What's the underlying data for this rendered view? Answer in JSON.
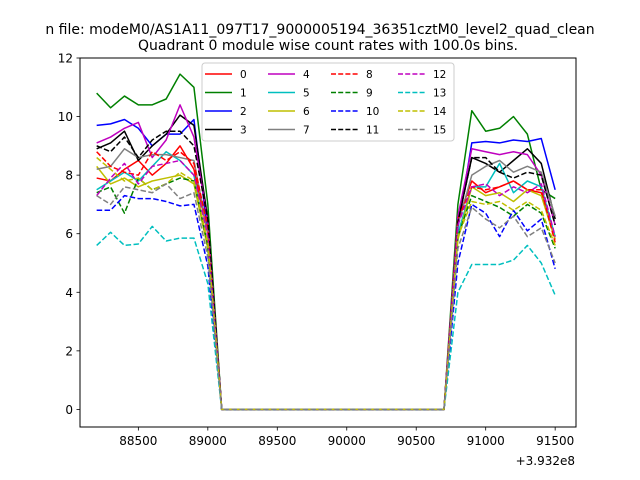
{
  "figure": {
    "suptitle": "n file: modeM0/AS1A11_097T17_9000005194_36351cztM0_level2_quad_clean",
    "offset_label": "+3.932e8"
  },
  "chart_data": {
    "type": "line",
    "title": "Quadrant 0 module wise count rates with 100.0s bins.",
    "xlabel": "",
    "ylabel": "",
    "xlim": [
      88080,
      91650
    ],
    "ylim": [
      -0.6,
      12.0
    ],
    "x_ticks": [
      88500,
      89000,
      89500,
      90000,
      90500,
      91000,
      91500
    ],
    "y_ticks": [
      0,
      2,
      4,
      6,
      8,
      10,
      12
    ],
    "x_tick_labels": [
      "88500",
      "89000",
      "89500",
      "90000",
      "90500",
      "91000",
      "91500"
    ],
    "y_tick_labels": [
      "0",
      "2",
      "4",
      "6",
      "8",
      "10",
      "12"
    ],
    "grid": false,
    "legend_position": "top-center",
    "legend_columns": 4,
    "x": [
      88200,
      88300,
      88400,
      88500,
      88600,
      88700,
      88800,
      88900,
      89000,
      89100,
      89200,
      89300,
      89400,
      89500,
      89600,
      89700,
      89800,
      89900,
      90000,
      90100,
      90200,
      90300,
      90400,
      90500,
      90600,
      90700,
      90800,
      90900,
      91000,
      91100,
      91200,
      91300,
      91400,
      91500
    ],
    "series": [
      {
        "name": "0",
        "color": "#ff0000",
        "dash": "solid",
        "values": [
          7.9,
          7.8,
          8.2,
          8.5,
          8.0,
          8.4,
          9.0,
          8.2,
          6.0,
          0,
          0,
          0,
          0,
          0,
          0,
          0,
          0,
          0,
          0,
          0,
          0,
          0,
          0,
          0,
          0,
          0,
          6.5,
          7.8,
          7.4,
          7.6,
          7.8,
          7.5,
          7.4,
          5.8
        ]
      },
      {
        "name": "1",
        "color": "#008000",
        "dash": "solid",
        "values": [
          10.8,
          10.3,
          10.7,
          10.4,
          10.4,
          10.6,
          11.45,
          11.0,
          7.0,
          0,
          0,
          0,
          0,
          0,
          0,
          0,
          0,
          0,
          0,
          0,
          0,
          0,
          0,
          0,
          0,
          0,
          7.0,
          10.2,
          9.5,
          9.6,
          10.0,
          9.4,
          7.5,
          7.2
        ]
      },
      {
        "name": "2",
        "color": "#0000ff",
        "dash": "solid",
        "values": [
          9.7,
          9.75,
          9.9,
          9.6,
          9.0,
          9.4,
          9.4,
          9.9,
          6.0,
          0,
          0,
          0,
          0,
          0,
          0,
          0,
          0,
          0,
          0,
          0,
          0,
          0,
          0,
          0,
          0,
          0,
          6.2,
          9.1,
          9.15,
          9.1,
          9.2,
          9.15,
          9.25,
          7.5
        ]
      },
      {
        "name": "3",
        "color": "#000000",
        "dash": "solid",
        "values": [
          8.9,
          9.1,
          9.5,
          8.5,
          9.0,
          9.4,
          10.05,
          9.7,
          6.5,
          0,
          0,
          0,
          0,
          0,
          0,
          0,
          0,
          0,
          0,
          0,
          0,
          0,
          0,
          0,
          0,
          0,
          6.4,
          8.6,
          8.4,
          8.1,
          8.5,
          8.9,
          8.4,
          6.5
        ]
      },
      {
        "name": "4",
        "color": "#bf00bf",
        "dash": "solid",
        "values": [
          9.1,
          9.3,
          9.6,
          9.8,
          8.6,
          9.2,
          10.4,
          9.3,
          6.4,
          0,
          0,
          0,
          0,
          0,
          0,
          0,
          0,
          0,
          0,
          0,
          0,
          0,
          0,
          0,
          0,
          0,
          6.6,
          8.9,
          8.8,
          8.7,
          8.8,
          8.7,
          8.0,
          6.3
        ]
      },
      {
        "name": "5",
        "color": "#00bfbf",
        "dash": "solid",
        "values": [
          7.5,
          7.8,
          8.1,
          7.8,
          8.3,
          8.8,
          8.5,
          8.0,
          5.5,
          0,
          0,
          0,
          0,
          0,
          0,
          0,
          0,
          0,
          0,
          0,
          0,
          0,
          0,
          0,
          0,
          0,
          6.0,
          7.6,
          7.6,
          8.4,
          7.4,
          7.8,
          7.6,
          5.9
        ]
      },
      {
        "name": "6",
        "color": "#bfbf00",
        "dash": "solid",
        "values": [
          8.3,
          7.7,
          7.9,
          7.6,
          7.8,
          7.9,
          8.0,
          7.7,
          5.5,
          0,
          0,
          0,
          0,
          0,
          0,
          0,
          0,
          0,
          0,
          0,
          0,
          0,
          0,
          0,
          0,
          0,
          5.8,
          7.6,
          7.3,
          7.4,
          7.1,
          7.5,
          7.3,
          5.8
        ]
      },
      {
        "name": "7",
        "color": "#808080",
        "dash": "solid",
        "values": [
          8.2,
          8.3,
          8.9,
          8.6,
          8.7,
          8.7,
          8.6,
          8.5,
          6.0,
          0,
          0,
          0,
          0,
          0,
          0,
          0,
          0,
          0,
          0,
          0,
          0,
          0,
          0,
          0,
          0,
          0,
          6.3,
          8.0,
          8.3,
          8.5,
          8.1,
          8.3,
          8.1,
          6.6
        ]
      },
      {
        "name": "8",
        "color": "#ff0000",
        "dash": "dashed",
        "values": [
          8.8,
          8.3,
          8.1,
          8.0,
          8.8,
          8.5,
          8.8,
          8.4,
          6.2,
          0,
          0,
          0,
          0,
          0,
          0,
          0,
          0,
          0,
          0,
          0,
          0,
          0,
          0,
          0,
          0,
          0,
          6.5,
          7.6,
          7.5,
          7.6,
          7.8,
          7.5,
          7.5,
          5.7
        ]
      },
      {
        "name": "9",
        "color": "#008000",
        "dash": "dashed",
        "values": [
          7.4,
          7.6,
          6.7,
          7.9,
          7.5,
          7.7,
          7.9,
          7.8,
          5.6,
          0,
          0,
          0,
          0,
          0,
          0,
          0,
          0,
          0,
          0,
          0,
          0,
          0,
          0,
          0,
          0,
          0,
          5.9,
          7.3,
          7.1,
          6.9,
          6.6,
          7.0,
          6.7,
          5.5
        ]
      },
      {
        "name": "10",
        "color": "#0000ff",
        "dash": "dashed",
        "values": [
          6.8,
          6.8,
          7.3,
          7.2,
          7.2,
          7.1,
          6.95,
          7.0,
          4.9,
          0,
          0,
          0,
          0,
          0,
          0,
          0,
          0,
          0,
          0,
          0,
          0,
          0,
          0,
          0,
          0,
          0,
          5.0,
          7.0,
          6.7,
          5.9,
          6.8,
          6.1,
          6.5,
          4.8
        ]
      },
      {
        "name": "11",
        "color": "#000000",
        "dash": "dashed",
        "values": [
          9.0,
          8.8,
          9.3,
          8.6,
          9.2,
          9.5,
          9.5,
          9.0,
          6.5,
          0,
          0,
          0,
          0,
          0,
          0,
          0,
          0,
          0,
          0,
          0,
          0,
          0,
          0,
          0,
          0,
          0,
          6.4,
          8.6,
          8.6,
          8.1,
          7.9,
          8.1,
          8.0,
          6.3
        ]
      },
      {
        "name": "12",
        "color": "#bf00bf",
        "dash": "dashed",
        "values": [
          7.3,
          7.9,
          8.4,
          7.7,
          8.3,
          8.4,
          8.5,
          8.0,
          5.9,
          0,
          0,
          0,
          0,
          0,
          0,
          0,
          0,
          0,
          0,
          0,
          0,
          0,
          0,
          0,
          0,
          0,
          6.3,
          7.6,
          7.7,
          7.3,
          7.6,
          7.4,
          7.7,
          5.9
        ]
      },
      {
        "name": "13",
        "color": "#00bfbf",
        "dash": "dashed",
        "values": [
          5.6,
          6.05,
          5.6,
          5.65,
          6.25,
          5.75,
          5.85,
          5.85,
          4.3,
          0,
          0,
          0,
          0,
          0,
          0,
          0,
          0,
          0,
          0,
          0,
          0,
          0,
          0,
          0,
          0,
          0,
          4.0,
          4.95,
          4.95,
          4.95,
          5.1,
          5.6,
          5.0,
          3.9
        ]
      },
      {
        "name": "14",
        "color": "#bfbf00",
        "dash": "dashed",
        "values": [
          8.6,
          8.2,
          7.8,
          7.9,
          7.5,
          7.7,
          8.1,
          7.8,
          5.7,
          0,
          0,
          0,
          0,
          0,
          0,
          0,
          0,
          0,
          0,
          0,
          0,
          0,
          0,
          0,
          0,
          0,
          5.9,
          7.1,
          7.0,
          7.1,
          6.8,
          7.1,
          6.8,
          5.6
        ]
      },
      {
        "name": "15",
        "color": "#808080",
        "dash": "dashed",
        "values": [
          7.3,
          7.0,
          7.6,
          7.5,
          7.4,
          7.7,
          7.2,
          7.4,
          5.2,
          0,
          0,
          0,
          0,
          0,
          0,
          0,
          0,
          0,
          0,
          0,
          0,
          0,
          0,
          0,
          0,
          0,
          5.5,
          6.9,
          6.5,
          6.2,
          6.6,
          5.9,
          6.2,
          5.0
        ]
      }
    ]
  }
}
